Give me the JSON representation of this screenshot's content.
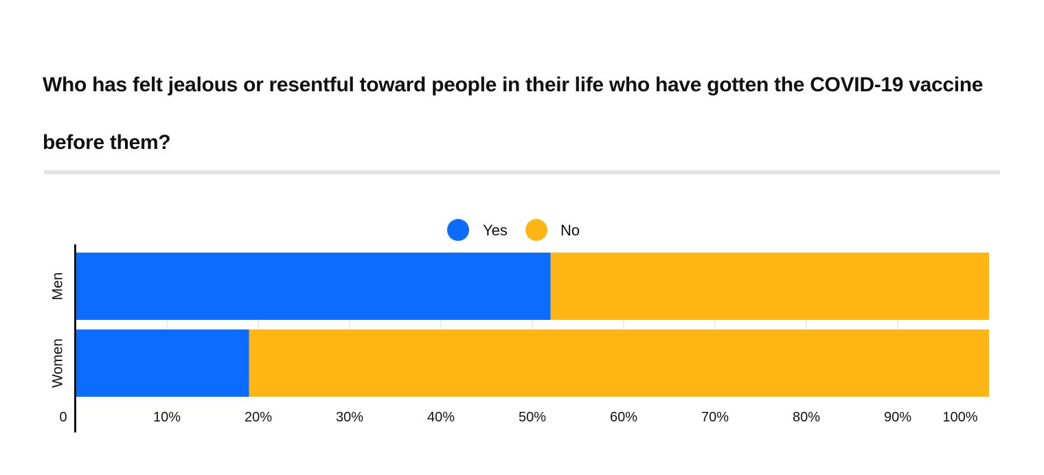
{
  "chart_data": {
    "type": "bar",
    "orientation": "horizontal",
    "stacked": true,
    "title": "Who has felt jealous or resentful toward people in their life who have gotten the COVID-19 vaccine before them?",
    "categories": [
      "Men",
      "Women"
    ],
    "series": [
      {
        "name": "Yes",
        "values": [
          52,
          19
        ]
      },
      {
        "name": "No",
        "values": [
          48,
          81
        ]
      }
    ],
    "colors": {
      "Yes": "#0b6cff",
      "No": "#ffb513"
    },
    "xlim": [
      0,
      100
    ],
    "x_ticks": [
      "0",
      "10%",
      "20%",
      "30%",
      "40%",
      "50%",
      "60%",
      "70%",
      "80%",
      "90%",
      "100%"
    ],
    "xlabel": "",
    "ylabel": "",
    "legend_position": "top-center",
    "grid": false
  }
}
